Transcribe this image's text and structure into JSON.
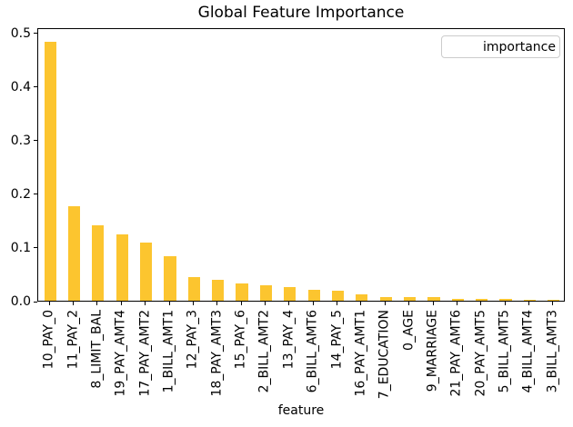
{
  "chart_data": {
    "type": "bar",
    "title": "Global Feature Importance",
    "xlabel": "feature",
    "ylabel": "",
    "legend": {
      "label": "importance",
      "position": "upper right"
    },
    "bar_color": "#FCC52F",
    "grid": false,
    "ylim": [
      0,
      0.51
    ],
    "yticklabels": [
      "0.0",
      "0.1",
      "0.2",
      "0.3",
      "0.4",
      "0.5"
    ],
    "categories": [
      "10_PAY_0",
      "11_PAY_2",
      "8_LIMIT_BAL",
      "19_PAY_AMT4",
      "17_PAY_AMT2",
      "1_BILL_AMT1",
      "12_PAY_3",
      "18_PAY_AMT3",
      "15_PAY_6",
      "2_BILL_AMT2",
      "13_PAY_4",
      "6_BILL_AMT6",
      "14_PAY_5",
      "16_PAY_AMT1",
      "7_EDUCATION",
      "0_AGE",
      "9_MARRIAGE",
      "21_PAY_AMT6",
      "20_PAY_AMT5",
      "5_BILL_AMT5",
      "4_BILL_AMT4",
      "3_BILL_AMT3"
    ],
    "values": [
      0.483,
      0.177,
      0.141,
      0.123,
      0.108,
      0.083,
      0.044,
      0.039,
      0.032,
      0.028,
      0.026,
      0.02,
      0.018,
      0.012,
      0.007,
      0.006,
      0.006,
      0.004,
      0.004,
      0.003,
      0.001,
      0.001
    ]
  }
}
